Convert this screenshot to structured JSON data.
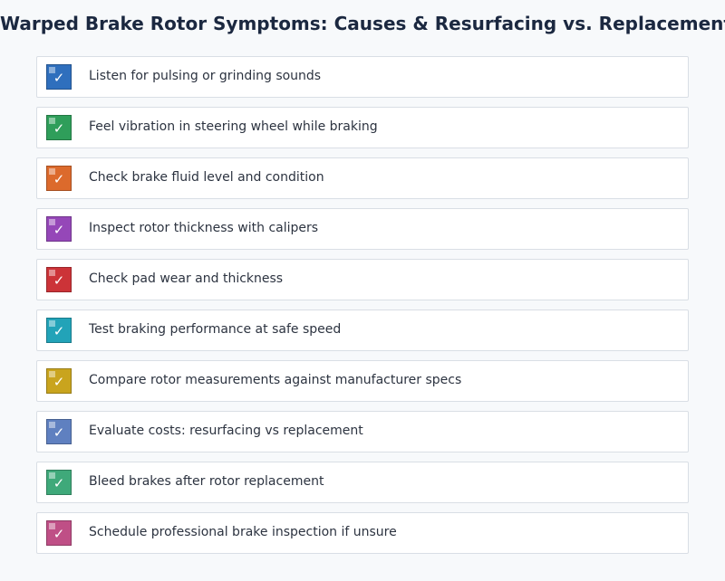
{
  "title": "Warped Brake Rotor Symptoms: Causes & Resurfacing vs. Replacement",
  "items": [
    {
      "label": "Listen for pulsing or grinding sounds",
      "color": "#2f6fbd",
      "checked": true
    },
    {
      "label": "Feel vibration in steering wheel while braking",
      "color": "#2f9e5a",
      "checked": true
    },
    {
      "label": "Check brake fluid level and condition",
      "color": "#dc6a2c",
      "checked": true
    },
    {
      "label": "Inspect rotor thickness with calipers",
      "color": "#9547b8",
      "checked": true
    },
    {
      "label": "Check pad wear and thickness",
      "color": "#cc3338",
      "checked": true
    },
    {
      "label": "Test braking performance at safe speed",
      "color": "#22a3b8",
      "checked": true
    },
    {
      "label": "Compare rotor measurements against manufacturer specs",
      "color": "#c9a41e",
      "checked": true
    },
    {
      "label": "Evaluate costs: resurfacing vs replacement",
      "color": "#5f80c0",
      "checked": true
    },
    {
      "label": "Bleed brakes after rotor replacement",
      "color": "#3fa97a",
      "checked": true
    },
    {
      "label": "Schedule professional brake inspection if unsure",
      "color": "#bf4f86",
      "checked": true
    }
  ],
  "check_glyph": "✓"
}
